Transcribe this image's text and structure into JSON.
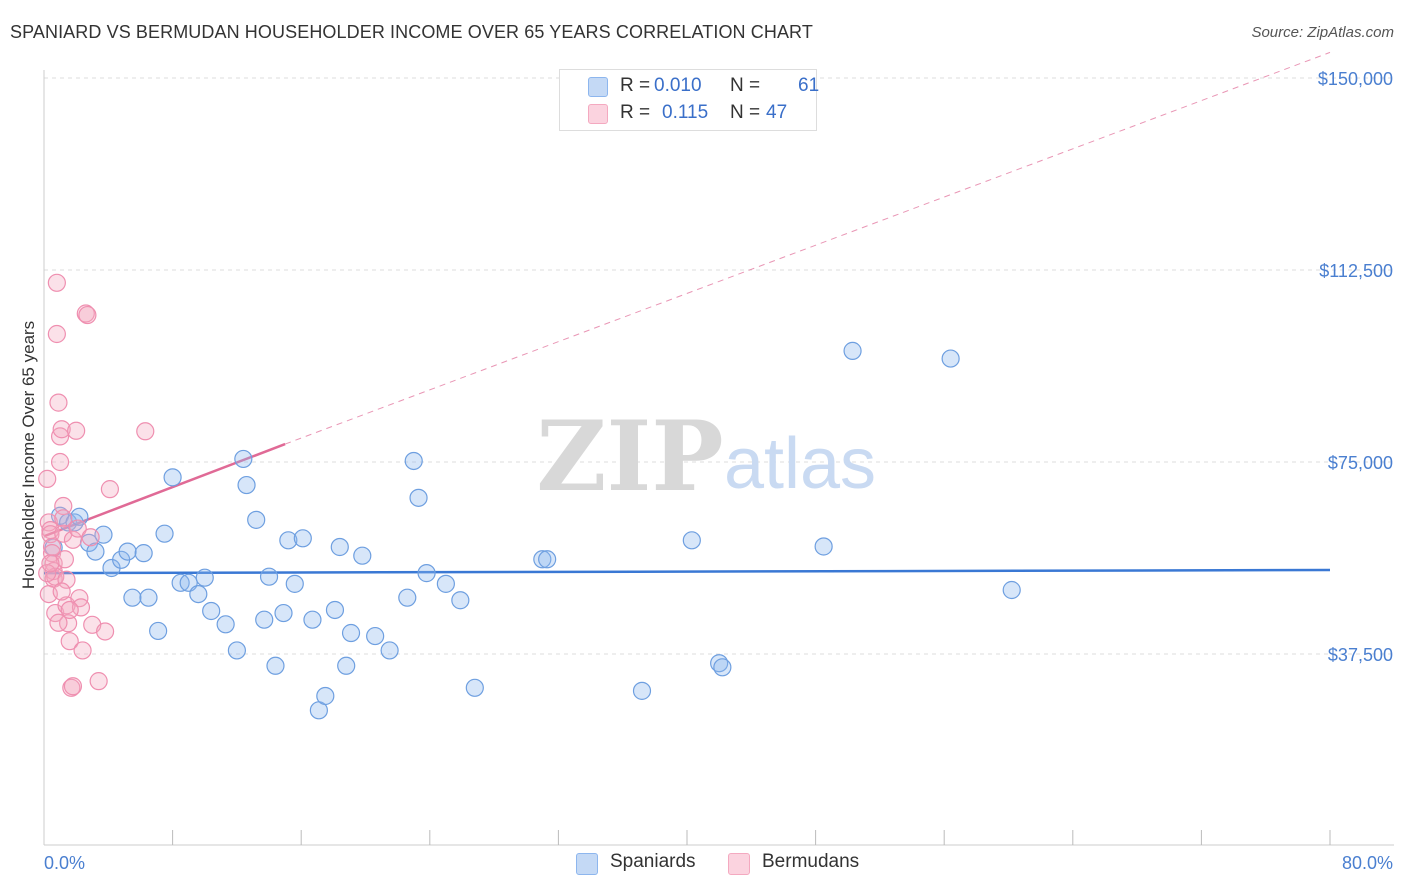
{
  "title": "SPANIARD VS BERMUDAN HOUSEHOLDER INCOME OVER 65 YEARS CORRELATION CHART",
  "source": "Source: ZipAtlas.com",
  "watermark": {
    "zip": "ZIP",
    "atlas": "atlas"
  },
  "legend": {
    "rows": [
      {
        "r_label": "R =",
        "r_value": "0.010",
        "n_label": "N =",
        "n_value": "61",
        "color": "#8db6ee"
      },
      {
        "r_label": "R =",
        "r_value": "0.115",
        "n_label": "N =",
        "n_value": "47",
        "color": "#f4a9c0"
      }
    ]
  },
  "bottom_legend": {
    "spaniards": "Spaniards",
    "bermudans": "Bermudans"
  },
  "chart_data": {
    "type": "scatter",
    "title": "SPANIARD VS BERMUDAN HOUSEHOLDER INCOME OVER 65 YEARS CORRELATION CHART",
    "xlabel": "",
    "ylabel": "Householder Income Over 65 years",
    "xlim": [
      0,
      80
    ],
    "ylim": [
      0,
      155000
    ],
    "x_tick_labels": [
      "0.0%",
      "80.0%"
    ],
    "y_ticks": [
      37500,
      75000,
      112500,
      150000
    ],
    "y_tick_labels": [
      "$37,500",
      "$75,000",
      "$112,500",
      "$150,000"
    ],
    "colors": {
      "spaniards": "#8db6ee",
      "bermudans": "#f4a9c0",
      "spaniards_line": "#3a78d4",
      "bermudans_line": "#e06a96"
    },
    "series": [
      {
        "name": "Spaniards",
        "points": [
          [
            1.0,
            64500
          ],
          [
            1.5,
            63200
          ],
          [
            1.9,
            63200
          ],
          [
            2.2,
            64300
          ],
          [
            2.8,
            59200
          ],
          [
            3.2,
            57500
          ],
          [
            3.7,
            60800
          ],
          [
            4.2,
            54300
          ],
          [
            4.8,
            55900
          ],
          [
            5.2,
            57500
          ],
          [
            5.5,
            48500
          ],
          [
            6.2,
            57200
          ],
          [
            6.5,
            48500
          ],
          [
            7.1,
            42000
          ],
          [
            7.5,
            61000
          ],
          [
            8.0,
            72000
          ],
          [
            8.5,
            51400
          ],
          [
            9.0,
            51400
          ],
          [
            9.6,
            49200
          ],
          [
            10.0,
            52400
          ],
          [
            10.4,
            45900
          ],
          [
            11.3,
            43300
          ],
          [
            12.0,
            38200
          ],
          [
            12.4,
            75600
          ],
          [
            12.6,
            70500
          ],
          [
            13.2,
            63700
          ],
          [
            13.7,
            44200
          ],
          [
            14.0,
            52600
          ],
          [
            14.4,
            35200
          ],
          [
            14.9,
            45500
          ],
          [
            15.2,
            59700
          ],
          [
            15.6,
            51200
          ],
          [
            16.1,
            60100
          ],
          [
            16.7,
            44200
          ],
          [
            17.1,
            26500
          ],
          [
            17.5,
            29300
          ],
          [
            18.1,
            46100
          ],
          [
            18.4,
            58400
          ],
          [
            18.8,
            35200
          ],
          [
            19.1,
            41600
          ],
          [
            19.8,
            56700
          ],
          [
            20.6,
            41000
          ],
          [
            21.5,
            38200
          ],
          [
            22.6,
            48500
          ],
          [
            23.0,
            75200
          ],
          [
            23.3,
            68000
          ],
          [
            23.8,
            53300
          ],
          [
            25.0,
            51200
          ],
          [
            25.9,
            48000
          ],
          [
            26.8,
            30900
          ],
          [
            31.0,
            56000
          ],
          [
            31.3,
            56000
          ],
          [
            37.2,
            30300
          ],
          [
            40.3,
            59700
          ],
          [
            42.0,
            35700
          ],
          [
            42.2,
            34900
          ],
          [
            48.5,
            58500
          ],
          [
            50.3,
            96700
          ],
          [
            56.4,
            95200
          ],
          [
            60.2,
            50000
          ],
          [
            0.6,
            58300
          ]
        ]
      },
      {
        "name": "Bermudans",
        "points": [
          [
            0.2,
            71700
          ],
          [
            0.3,
            63200
          ],
          [
            0.4,
            61700
          ],
          [
            0.4,
            60900
          ],
          [
            0.5,
            58400
          ],
          [
            0.5,
            57200
          ],
          [
            0.6,
            55200
          ],
          [
            0.6,
            53700
          ],
          [
            0.6,
            52200
          ],
          [
            0.7,
            52600
          ],
          [
            0.3,
            49200
          ],
          [
            0.7,
            45500
          ],
          [
            0.8,
            110000
          ],
          [
            0.8,
            100000
          ],
          [
            0.9,
            86600
          ],
          [
            1.0,
            80000
          ],
          [
            1.0,
            75000
          ],
          [
            1.1,
            81400
          ],
          [
            1.2,
            66400
          ],
          [
            1.2,
            64000
          ],
          [
            1.2,
            61000
          ],
          [
            1.3,
            56000
          ],
          [
            1.4,
            52000
          ],
          [
            1.4,
            47000
          ],
          [
            1.5,
            43500
          ],
          [
            1.6,
            40000
          ],
          [
            1.7,
            30900
          ],
          [
            1.8,
            31200
          ],
          [
            1.8,
            59800
          ],
          [
            2.0,
            81100
          ],
          [
            2.1,
            62000
          ],
          [
            2.2,
            48400
          ],
          [
            2.3,
            46600
          ],
          [
            2.4,
            38200
          ],
          [
            2.6,
            104000
          ],
          [
            2.7,
            103700
          ],
          [
            2.9,
            60300
          ],
          [
            3.0,
            43200
          ],
          [
            3.4,
            32200
          ],
          [
            3.8,
            41900
          ],
          [
            4.1,
            69700
          ],
          [
            6.3,
            81000
          ],
          [
            0.2,
            53300
          ],
          [
            0.4,
            55200
          ],
          [
            0.9,
            43600
          ],
          [
            1.1,
            49700
          ],
          [
            1.6,
            46100
          ]
        ]
      }
    ],
    "trend_lines": [
      {
        "series": "Spaniards",
        "x": [
          0,
          80
        ],
        "y": [
          53300,
          53900
        ],
        "style": "solid"
      },
      {
        "series": "Bermudans",
        "x": [
          0,
          15
        ],
        "y": [
          60500,
          78500
        ],
        "style": "solid"
      },
      {
        "series": "Bermudans",
        "x": [
          15,
          80
        ],
        "y": [
          78500,
          155000
        ],
        "style": "dashed"
      }
    ]
  }
}
